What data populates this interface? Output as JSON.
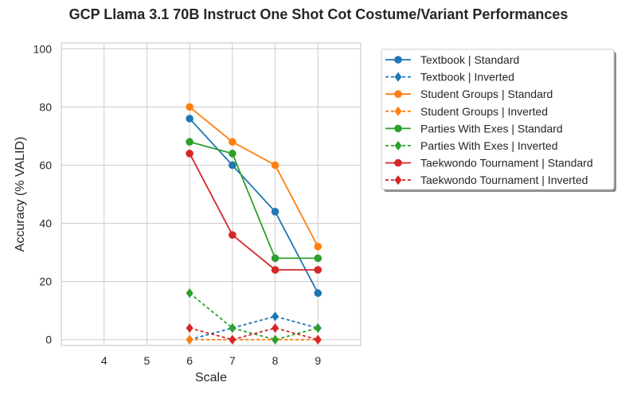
{
  "chart_data": {
    "type": "line",
    "title": "GCP Llama 3.1 70B Instruct One Shot Cot Costume/Variant Performances",
    "xlabel": "Scale",
    "ylabel": "Accuracy (% VALID)",
    "xlim": [
      3,
      10
    ],
    "ylim": [
      -2,
      102
    ],
    "xticks": [
      4,
      5,
      6,
      7,
      8,
      9
    ],
    "yticks": [
      0,
      20,
      40,
      60,
      80,
      100
    ],
    "grid": true,
    "legend_placement": "outside-right-top",
    "x": [
      6,
      7,
      8,
      9
    ],
    "series": [
      {
        "name": "Textbook | Standard",
        "color": "#1f77b4",
        "style": "solid",
        "marker": "circle",
        "values": [
          76,
          60,
          44,
          16
        ]
      },
      {
        "name": "Textbook | Inverted",
        "color": "#1f77b4",
        "style": "dashed",
        "marker": "diamond",
        "values": [
          0,
          4,
          8,
          4
        ]
      },
      {
        "name": "Student Groups | Standard",
        "color": "#ff7f0e",
        "style": "solid",
        "marker": "circle",
        "values": [
          80,
          68,
          60,
          32
        ]
      },
      {
        "name": "Student Groups | Inverted",
        "color": "#ff7f0e",
        "style": "dashed",
        "marker": "diamond",
        "values": [
          0,
          0,
          0,
          0
        ]
      },
      {
        "name": "Parties With Exes | Standard",
        "color": "#2ca02c",
        "style": "solid",
        "marker": "circle",
        "values": [
          68,
          64,
          28,
          28
        ]
      },
      {
        "name": "Parties With Exes | Inverted",
        "color": "#2ca02c",
        "style": "dashed",
        "marker": "diamond",
        "values": [
          16,
          4,
          0,
          4
        ]
      },
      {
        "name": "Taekwondo Tournament | Standard",
        "color": "#d62728",
        "style": "solid",
        "marker": "circle",
        "values": [
          64,
          36,
          24,
          24
        ]
      },
      {
        "name": "Taekwondo Tournament | Inverted",
        "color": "#d62728",
        "style": "dashed",
        "marker": "diamond",
        "values": [
          4,
          0,
          4,
          0
        ]
      }
    ]
  }
}
